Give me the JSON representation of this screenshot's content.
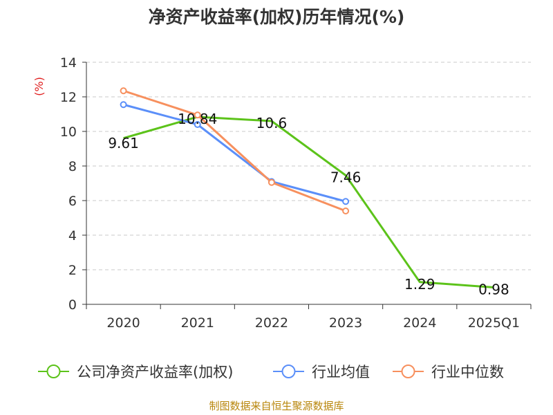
{
  "chart_data": {
    "type": "line",
    "title": "净资产收益率(加权)历年情况(%)",
    "ylabel": "(%)",
    "categories": [
      "2020",
      "2021",
      "2022",
      "2023",
      "2024",
      "2025Q1"
    ],
    "ylim": [
      0,
      14
    ],
    "yticks": [
      "0",
      "2",
      "4",
      "6",
      "8",
      "10",
      "12",
      "14"
    ],
    "grid": true,
    "legend_position": "bottom",
    "series": [
      {
        "name": "公司净资产收益率(加权)",
        "color": "#5cc31a",
        "values": [
          9.61,
          10.84,
          10.6,
          7.46,
          1.29,
          0.98
        ],
        "labels": [
          "9.61",
          "10.84",
          "10.6",
          "7.46",
          "1.29",
          "0.98"
        ]
      },
      {
        "name": "行业均值",
        "color": "#5b8ff9",
        "values": [
          11.55,
          10.4,
          7.1,
          5.95,
          null,
          null
        ]
      },
      {
        "name": "行业中位数",
        "color": "#f7905e",
        "values": [
          12.35,
          10.95,
          7.05,
          5.4,
          null,
          null
        ]
      }
    ],
    "source": "制图数据来自恒生聚源数据库"
  }
}
